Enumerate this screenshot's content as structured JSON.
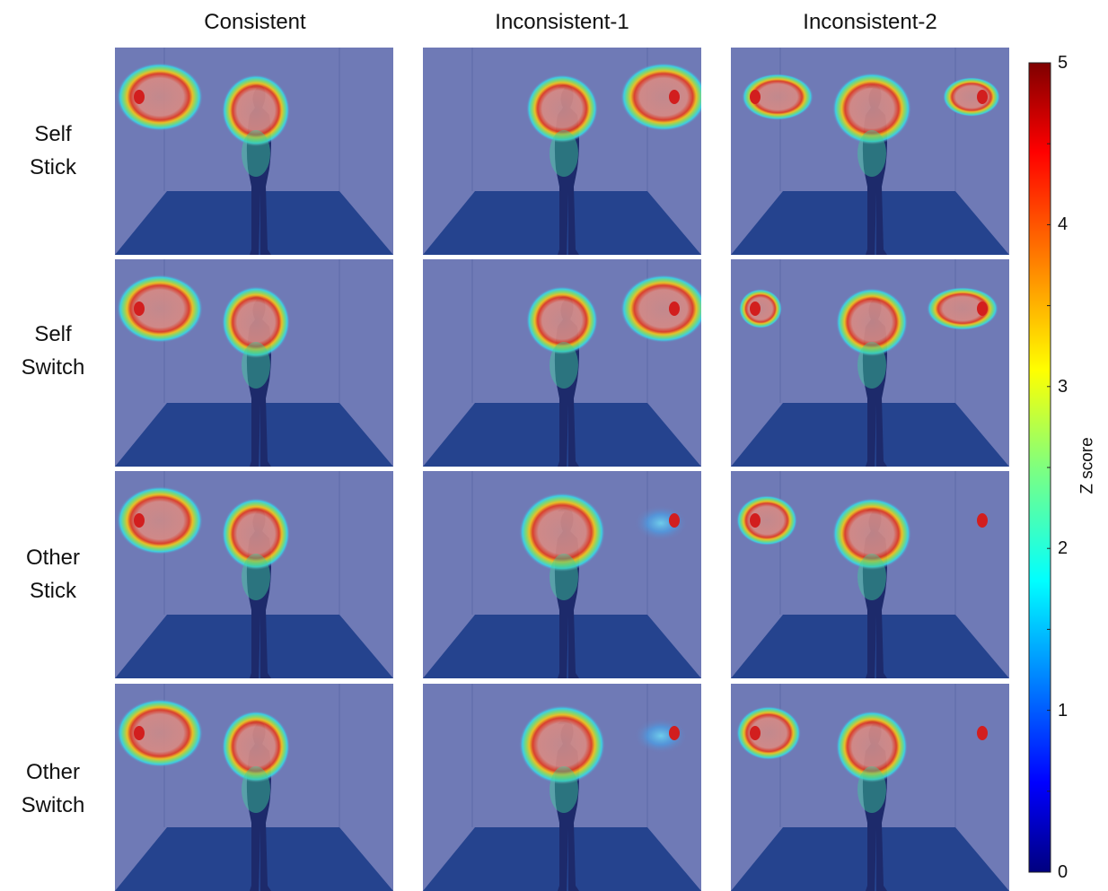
{
  "columns": [
    "Consistent",
    "Inconsistent-1",
    "Inconsistent-2"
  ],
  "rows": [
    {
      "line1": "Self",
      "line2": "Stick"
    },
    {
      "line1": "Self",
      "line2": "Switch"
    },
    {
      "line1": "Other",
      "line2": "Stick"
    },
    {
      "line1": "Other",
      "line2": "Switch"
    }
  ],
  "colorbar": {
    "label": "Z score",
    "ticks": [
      "5",
      "4",
      "3",
      "2",
      "1",
      "0"
    ],
    "min": 0,
    "max": 5
  },
  "colors": {
    "room_wall": "#6f7ab6",
    "room_floor": "#25438e",
    "target_dot": "#d21e1e"
  }
}
